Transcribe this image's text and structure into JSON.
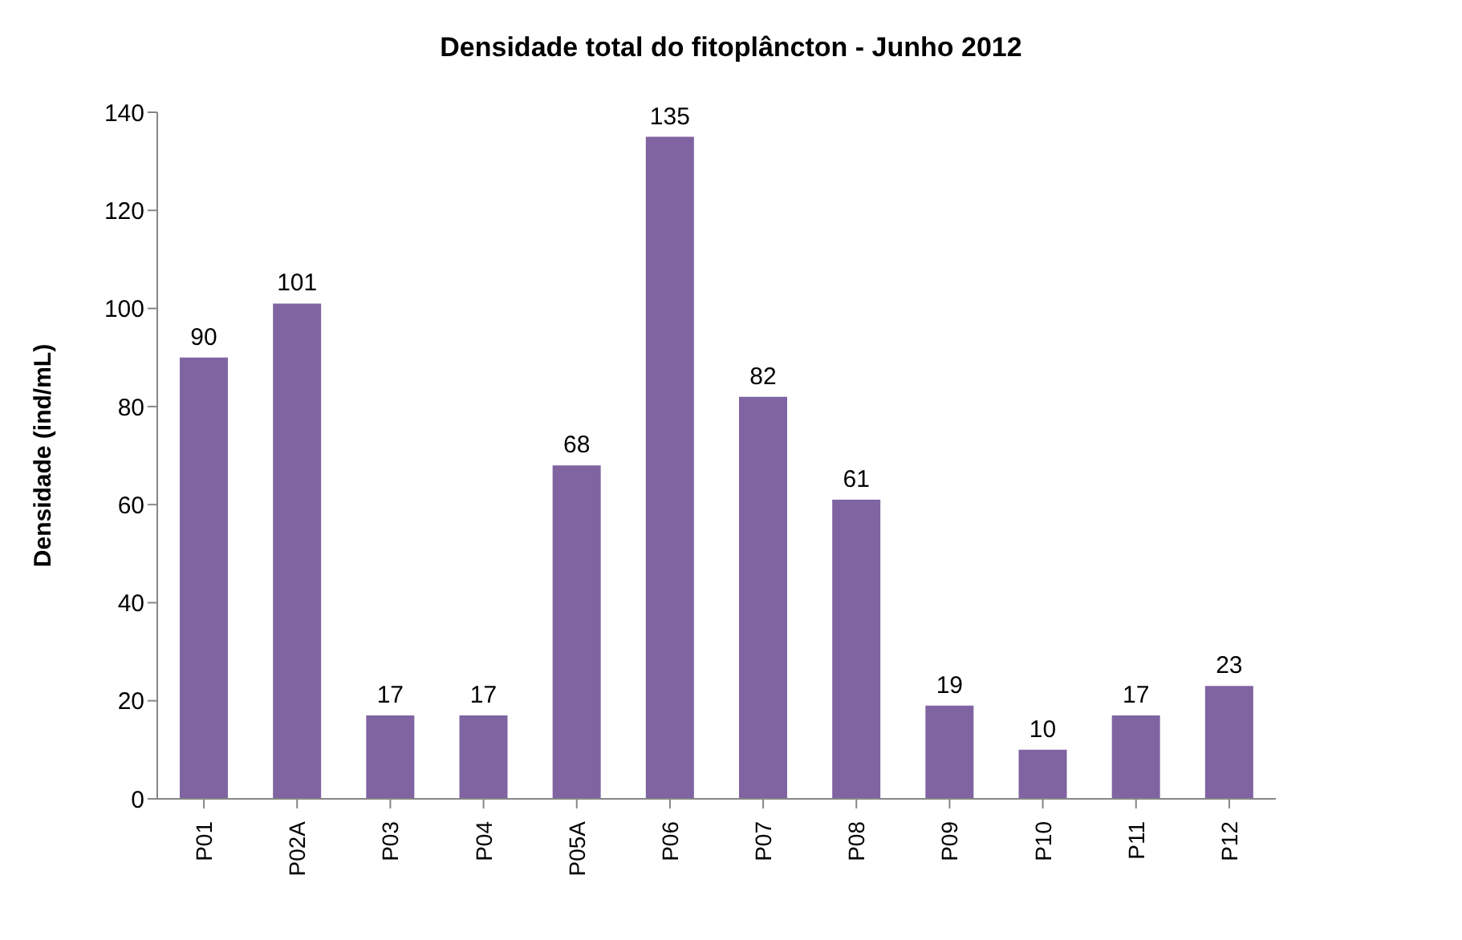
{
  "chart_data": {
    "type": "bar",
    "title": "Densidade total do fitoplâncton -  Junho 2012",
    "ylabel": "Densidade (ind/mL)",
    "categories": [
      "P01",
      "P02A",
      "P03",
      "P04",
      "P05A",
      "P06",
      "P07",
      "P08",
      "P09",
      "P10",
      "P11",
      "P12"
    ],
    "values": [
      90,
      101,
      17,
      17,
      68,
      135,
      82,
      61,
      19,
      10,
      17,
      23
    ],
    "color": "#8064a2",
    "ylim": [
      0,
      140
    ],
    "yticks": [
      0,
      20,
      40,
      60,
      80,
      100,
      120,
      140
    ],
    "grid": false,
    "legend": false,
    "data_labels": true
  }
}
